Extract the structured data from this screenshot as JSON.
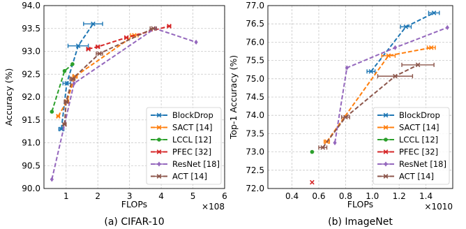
{
  "chart_data": [
    {
      "type": "line",
      "caption": "(a) CIFAR-10",
      "xlabel": "FLOPs",
      "ylabel": "Accuracy (%)",
      "x_offset_label": "×10^8",
      "x_scale": 100000000,
      "xlim": [
        0.3,
        6
      ],
      "ylim": [
        90.0,
        94.0
      ],
      "xticks": [
        1,
        2,
        3,
        4,
        5,
        6
      ],
      "yticks": [
        90.0,
        90.5,
        91.0,
        91.5,
        92.0,
        92.5,
        93.0,
        93.5,
        94.0
      ],
      "ytick_labels": [
        "90.0",
        "90.5",
        "91.0",
        "91.5",
        "92.0",
        "92.5",
        "93.0",
        "93.5",
        "94.0"
      ],
      "grid": true,
      "legend_position": "bottom-right",
      "series": [
        {
          "name": "BlockDrop",
          "color": "#1f77b4",
          "marker": "x",
          "x": [
            0.85,
            1.02,
            1.38,
            1.85
          ],
          "y": [
            91.3,
            92.3,
            93.12,
            93.6
          ],
          "xerr": [
            0.08,
            0.12,
            0.32,
            0.3
          ]
        },
        {
          "name": "SACT [14]",
          "color": "#ff7f0e",
          "marker": "x",
          "x": [
            0.75,
            1.02,
            1.28,
            3.15
          ],
          "y": [
            91.58,
            91.9,
            92.45,
            93.35
          ],
          "xerr": [
            0.04,
            0.06,
            0.07,
            0.12
          ]
        },
        {
          "name": "LCCL [12]",
          "color": "#2ca02c",
          "marker": "circle",
          "x": [
            0.55,
            0.95,
            1.2
          ],
          "y": [
            91.68,
            92.57,
            92.72
          ],
          "xerr": [
            0,
            0,
            0
          ]
        },
        {
          "name": "PFEC [32]",
          "color": "#d62728",
          "marker": "x",
          "x": [
            1.7,
            2.0,
            2.9,
            4.25
          ],
          "y": [
            93.05,
            93.1,
            93.3,
            93.55
          ],
          "xerr": [
            0.05,
            0.05,
            0.05,
            0.05
          ]
        },
        {
          "name": "ResNet [18]",
          "color": "#9467bd",
          "marker": "diamond",
          "x": [
            0.55,
            1.25,
            3.8,
            5.1
          ],
          "y": [
            90.2,
            92.3,
            93.5,
            93.2
          ],
          "xerr": [
            0,
            0,
            0,
            0
          ]
        },
        {
          "name": "ACT [14]",
          "color": "#8c564b",
          "marker": "x",
          "x": [
            0.95,
            1.0,
            1.2,
            2.05,
            3.75
          ],
          "y": [
            91.4,
            91.9,
            92.4,
            92.95,
            93.5
          ],
          "xerr": [
            0.05,
            0.06,
            0.08,
            0.1,
            0.1
          ]
        }
      ]
    },
    {
      "type": "line",
      "caption": "(b) ImageNet",
      "xlabel": "FLOPs",
      "ylabel": "Top-1 Accuracy (%)",
      "x_offset_label": "×10^10",
      "x_scale": 10000000000,
      "xlim": [
        0.22,
        1.6
      ],
      "ylim": [
        72.0,
        77.0
      ],
      "xticks": [
        0.4,
        0.6,
        0.8,
        1.0,
        1.2,
        1.4
      ],
      "xtick_labels": [
        "0.4",
        "0.6",
        "0.8",
        "1.0",
        "1.2",
        "1.4"
      ],
      "yticks": [
        72.0,
        72.5,
        73.0,
        73.5,
        74.0,
        74.5,
        75.0,
        75.5,
        76.0,
        76.5,
        77.0
      ],
      "ytick_labels": [
        "72.0",
        "72.5",
        "73.0",
        "73.5",
        "74.0",
        "74.5",
        "75.0",
        "75.5",
        "76.0",
        "76.5",
        "77.0"
      ],
      "grid": true,
      "legend_position": "bottom-right",
      "series": [
        {
          "name": "BlockDrop",
          "color": "#1f77b4",
          "marker": "x",
          "x": [
            0.99,
            1.25,
            1.46
          ],
          "y": [
            75.2,
            76.42,
            76.8
          ],
          "xerr": [
            0.03,
            0.04,
            0.04
          ]
        },
        {
          "name": "SACT [14]",
          "color": "#ff7f0e",
          "marker": "x",
          "x": [
            0.66,
            1.12,
            1.44
          ],
          "y": [
            73.28,
            75.63,
            75.85
          ],
          "xerr": [
            0.02,
            0.05,
            0.03
          ]
        },
        {
          "name": "LCCL [12]",
          "color": "#2ca02c",
          "marker": "circle",
          "x": [
            0.55
          ],
          "y": [
            73.0
          ],
          "xerr": [
            0
          ]
        },
        {
          "name": "PFEC [32]",
          "color": "#d62728",
          "marker": "x",
          "x": [
            0.55
          ],
          "y": [
            72.17
          ],
          "xerr": [
            0
          ]
        },
        {
          "name": "ResNet [18]",
          "color": "#9467bd",
          "marker": "diamond",
          "x": [
            0.72,
            0.81,
            1.17,
            1.56
          ],
          "y": [
            73.25,
            75.3,
            75.85,
            76.4
          ],
          "xerr": [
            0,
            0,
            0,
            0
          ]
        },
        {
          "name": "ACT [14]",
          "color": "#8c564b",
          "marker": "x",
          "x": [
            0.63,
            0.8,
            1.17,
            1.34
          ],
          "y": [
            73.12,
            73.95,
            75.07,
            75.38
          ],
          "xerr": [
            0.03,
            0.03,
            0.13,
            0.12
          ]
        }
      ]
    }
  ]
}
